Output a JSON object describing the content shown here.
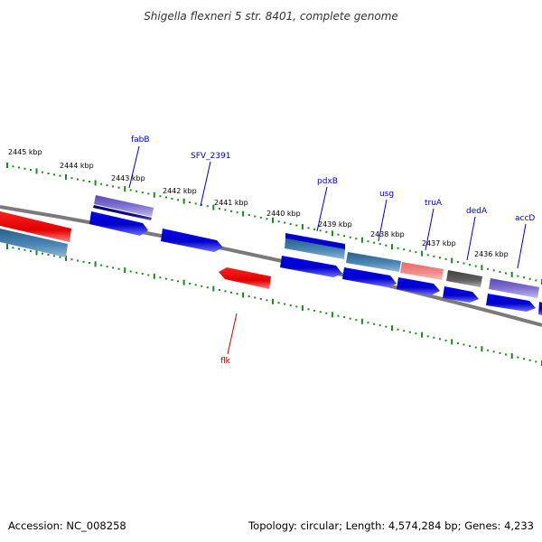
{
  "title": "Shigella flexneri 5 str. 8401, complete genome",
  "footer": {
    "accession": "Accession: NC_008258",
    "summary": "Topology: circular; Length: 4,574,284 bp; Genes: 4,233"
  },
  "colors": {
    "backbone": "#7f7f7f",
    "ticks": "#1a8a1a",
    "plus_strand_blue": "#0000dd",
    "minus_strand_red": "#ee0000",
    "forward_label": "#0000cc",
    "reverse_label": "#cc0000"
  },
  "scale_labels": [
    "2445 kbp",
    "2444 kbp",
    "2443 kbp",
    "2442 kbp",
    "2441 kbp",
    "2440 kbp",
    "2439 kbp",
    "2438 kbp",
    "2437 kbp",
    "2436 kbp"
  ],
  "genes": [
    {
      "name": "fabB",
      "strand": "forward",
      "label_color": "#0000cc"
    },
    {
      "name": "SFV_2391",
      "strand": "forward",
      "label_color": "#0000cc"
    },
    {
      "name": "pdxB",
      "strand": "forward",
      "label_color": "#0000cc"
    },
    {
      "name": "usg",
      "strand": "forward",
      "label_color": "#0000cc"
    },
    {
      "name": "truA",
      "strand": "forward",
      "label_color": "#0000cc"
    },
    {
      "name": "dedA",
      "strand": "forward",
      "label_color": "#0000cc"
    },
    {
      "name": "accD",
      "strand": "forward",
      "label_color": "#0000cc"
    },
    {
      "name": "flk",
      "strand": "reverse",
      "label_color": "#cc0000"
    }
  ]
}
